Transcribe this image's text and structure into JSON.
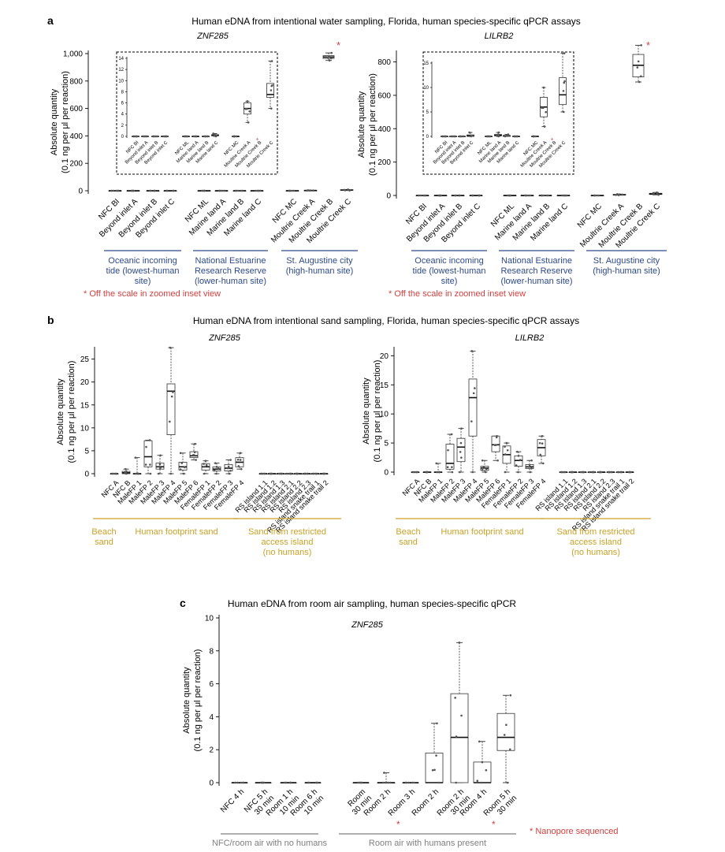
{
  "colors": {
    "axis": "#000000",
    "red": "#d23f3f",
    "blue": "#2e4a8a",
    "gold": "#c9a227",
    "gray": "#7f7f7f",
    "pt": "#555555"
  },
  "panel_a": {
    "letter": "a",
    "title": "Human eDNA from intentional water sampling, Florida, human species-specific qPCR assays",
    "footnote": "* Off the scale in zoomed inset view",
    "star": "*"
  },
  "panel_b": {
    "letter": "b",
    "title": "Human eDNA from intentional sand sampling, Florida, human species-specific qPCR assays"
  },
  "panel_c": {
    "letter": "c",
    "title": "Human eDNA from room air sampling, human species-specific qPCR",
    "footnote": "* Nanopore sequenced",
    "star": "*"
  },
  "ylabel_line1": "Absolute quantity",
  "ylabel_line2": "(0.1 ng per μl per reaction)",
  "chart_data": [
    {
      "id": "a_znf",
      "type": "box",
      "title": "ZNF285",
      "ylabel": "Absolute quantity (0.1 ng per μl per reaction)",
      "ylim": [
        0,
        1000
      ],
      "yticks": [
        "0",
        "200",
        "400",
        "600",
        "800",
        "1,000"
      ],
      "ytick_values": [
        0,
        200,
        400,
        600,
        800,
        1000
      ],
      "categories": [
        "NFC BI",
        "Beyond inlet A",
        "Beyond inlet B",
        "Beyond inlet C",
        "NFC ML",
        "Marine land A",
        "Marine land B",
        "Marine land C",
        "NFC MC",
        "Moultrie Creek A",
        "Moultrie Creek B",
        "Moultrie Creek C"
      ],
      "boxes": [
        [
          0,
          0,
          0,
          0,
          0
        ],
        [
          0,
          0,
          0,
          0,
          0
        ],
        [
          0,
          0,
          0,
          0,
          0
        ],
        [
          0,
          0,
          0,
          0,
          0
        ],
        [
          0,
          0,
          0,
          0,
          0
        ],
        [
          0,
          0,
          0,
          0,
          0
        ],
        [
          0,
          0,
          0,
          0,
          0
        ],
        [
          0,
          0,
          0,
          0,
          0
        ],
        [
          0,
          0,
          0,
          0,
          0
        ],
        [
          1,
          1,
          2,
          2,
          3
        ],
        [
          950,
          965,
          975,
          985,
          1005
        ],
        [
          2,
          3,
          5,
          7,
          9
        ]
      ],
      "starred": [
        "Moultrie Creek B"
      ],
      "groups": [
        {
          "label": [
            "Oceanic incoming",
            "tide (lowest-human",
            "site)"
          ],
          "from": 0,
          "to": 3
        },
        {
          "label": [
            "National Estuarine",
            "Research Reserve",
            "(lower-human site)"
          ],
          "from": 4,
          "to": 7
        },
        {
          "label": [
            "St. Augustine city",
            "(high-human site)"
          ],
          "from": 8,
          "to": 11
        }
      ],
      "inset": {
        "ylim": [
          0,
          14
        ],
        "yticks": [
          "0",
          "2",
          "4",
          "6",
          "8",
          "10",
          "12",
          "14"
        ],
        "ytick_values": [
          0,
          2,
          4,
          6,
          8,
          10,
          12,
          14
        ],
        "categories": [
          "NFC BI",
          "Beyond inlet A",
          "Beyond inlet B",
          "Beyond inlet C",
          "NFC ML",
          "Marine land A",
          "Marine land B",
          "Marine land C",
          "NFC MC",
          "Moultrie Creek A",
          "Moultrie Creek B",
          "Moultrie Creek C"
        ],
        "boxes": [
          [
            0,
            0,
            0,
            0,
            0
          ],
          [
            0,
            0,
            0,
            0,
            0
          ],
          [
            0,
            0,
            0,
            0,
            0
          ],
          [
            0,
            0,
            0,
            0,
            0
          ],
          [
            0,
            0,
            0,
            0,
            0
          ],
          [
            0,
            0,
            0,
            0,
            0
          ],
          [
            0,
            0,
            0,
            0,
            0
          ],
          [
            0,
            0.1,
            0.2,
            0.3,
            0.5
          ],
          [
            0,
            0,
            0,
            0,
            0
          ],
          [
            2.5,
            4,
            5,
            6,
            6.3
          ],
          null,
          [
            5,
            7,
            7.5,
            9.5,
            13.5
          ]
        ]
      }
    },
    {
      "id": "a_lil",
      "type": "box",
      "title": "LILRB2",
      "ylabel": "Absolute quantity (0.1 ng per μl per reaction)",
      "ylim": [
        0,
        850
      ],
      "yticks": [
        "0",
        "200",
        "400",
        "600",
        "800"
      ],
      "ytick_values": [
        0,
        200,
        400,
        600,
        800
      ],
      "categories": [
        "NFC BI",
        "Beyond inlet A",
        "Beyond inlet B",
        "Beyond inlet C",
        "NFC ML",
        "Marine land A",
        "Marine land B",
        "Marine land C",
        "NFC MC",
        "Moultrie Creek A",
        "Moultrie Creek B",
        "Moultrie Creek C"
      ],
      "boxes": [
        [
          0,
          0,
          0,
          0,
          0
        ],
        [
          0,
          0,
          0,
          0,
          0
        ],
        [
          0,
          0,
          0,
          0,
          0
        ],
        [
          0,
          0,
          0,
          0,
          0
        ],
        [
          0,
          0,
          0,
          0,
          0
        ],
        [
          0,
          0,
          0,
          0,
          0
        ],
        [
          0,
          0,
          0,
          0,
          0
        ],
        [
          0,
          0,
          0,
          0,
          0
        ],
        [
          0,
          0,
          0,
          0,
          0
        ],
        [
          2,
          3,
          4,
          6,
          8
        ],
        [
          680,
          710,
          780,
          845,
          900
        ],
        [
          4,
          6,
          9,
          13,
          18
        ]
      ],
      "starred": [
        "Moultrie Creek B"
      ],
      "groups": [
        {
          "label": [
            "Oceanic incoming",
            "tide (lowest-human",
            "site)"
          ],
          "from": 0,
          "to": 3
        },
        {
          "label": [
            "National Estuarine",
            "Research Reserve",
            "(lower-human site)"
          ],
          "from": 4,
          "to": 7
        },
        {
          "label": [
            "St. Augustine city",
            "(high-human site)"
          ],
          "from": 8,
          "to": 11
        }
      ],
      "inset": {
        "ylim": [
          0,
          15
        ],
        "yticks": [
          "0",
          "5",
          "10",
          "15"
        ],
        "ytick_values": [
          0,
          5,
          10,
          15
        ],
        "categories": [
          "NFC BI",
          "Beyond inlet A",
          "Beyond inlet B",
          "Beyond inlet C",
          "NFC ML",
          "Marine land A",
          "Marine land B",
          "Marine land C",
          "NFC MC",
          "Moultrie Creek A",
          "Moultrie Creek B",
          "Moultrie Creek C"
        ],
        "boxes": [
          [
            0,
            0,
            0,
            0,
            0
          ],
          [
            0,
            0,
            0,
            0,
            0
          ],
          [
            0,
            0,
            0,
            0,
            0
          ],
          [
            0,
            0,
            0.1,
            0.3,
            0.8
          ],
          [
            0,
            0,
            0,
            0,
            0
          ],
          [
            0,
            0.1,
            0.2,
            0.4,
            0.8
          ],
          [
            0,
            0,
            0.1,
            0.2,
            0.4
          ],
          [
            0,
            0,
            0,
            0,
            0
          ],
          [
            0,
            0,
            0,
            0,
            0
          ],
          [
            2,
            4,
            6,
            8,
            10
          ],
          null,
          [
            5,
            6.5,
            8.5,
            12,
            17
          ]
        ]
      }
    },
    {
      "id": "b_znf",
      "type": "box",
      "title": "ZNF285",
      "ylabel": "Absolute quantity (0.1 ng per μl per reaction)",
      "ylim": [
        0,
        27
      ],
      "yticks": [
        "0",
        "5",
        "10",
        "15",
        "20",
        "25"
      ],
      "ytick_values": [
        0,
        5,
        10,
        15,
        20,
        25
      ],
      "categories": [
        "NFC A",
        "NFC B",
        "MaleFP 1",
        "MaleFP 2",
        "MaleFP 3",
        "MaleFP 4",
        "MaleFP 5",
        "MaleFP 6",
        "FemaleFP 1",
        "FemaleFP 2",
        "FemaleFP 3",
        "FemaleFP 4",
        "RS island 1.1",
        "RS island 1.2",
        "RS island 1.3",
        "RS island 2.1",
        "RS island 2.2",
        "RS island 2.3",
        "RS island snake trail 1",
        "RS island snake trail 2"
      ],
      "boxes": [
        [
          0,
          0,
          0,
          0,
          0
        ],
        [
          0,
          0,
          0.2,
          0.5,
          1
        ],
        [
          0,
          0,
          0,
          0,
          3.5
        ],
        [
          0,
          1.5,
          3.7,
          7.2,
          7.3
        ],
        [
          0,
          1,
          1.5,
          2.3,
          4
        ],
        [
          0,
          8.5,
          18,
          19.6,
          27.5
        ],
        [
          0,
          0.8,
          1.5,
          2.5,
          4.5
        ],
        [
          3,
          3.5,
          3.9,
          4.8,
          6.5
        ],
        [
          0,
          0.8,
          1.5,
          2.2,
          2.8
        ],
        [
          0,
          0.6,
          1,
          1.5,
          2.3
        ],
        [
          0,
          0.6,
          1.2,
          2,
          3
        ],
        [
          1,
          1.5,
          2.5,
          3.5,
          4.5
        ],
        [
          0,
          0,
          0,
          0,
          0
        ],
        [
          0,
          0,
          0,
          0,
          0
        ],
        [
          0,
          0,
          0,
          0,
          0
        ],
        [
          0,
          0,
          0,
          0,
          0
        ],
        [
          0,
          0,
          0,
          0,
          0
        ],
        [
          0,
          0,
          0,
          0,
          0
        ],
        [
          0,
          0,
          0,
          0,
          0
        ],
        [
          0,
          0,
          0,
          0,
          0
        ]
      ],
      "starred": [],
      "groups": [
        {
          "label": [
            "Beach",
            "sand"
          ],
          "from": 0,
          "to": 1
        },
        {
          "label": [
            "Human footprint sand"
          ],
          "from": 2,
          "to": 11
        },
        {
          "label": [
            "Sand from restricted",
            "access island",
            "(no humans)"
          ],
          "from": 12,
          "to": 19
        }
      ]
    },
    {
      "id": "b_lil",
      "type": "box",
      "title": "LILRB2",
      "ylabel": "Absolute quantity (0.1 ng per μl per reaction)",
      "ylim": [
        0,
        21
      ],
      "yticks": [
        "0",
        "5",
        "10",
        "15",
        "20"
      ],
      "ytick_values": [
        0,
        5,
        10,
        15,
        20
      ],
      "categories": [
        "NFC A",
        "NFC B",
        "MaleFP 1",
        "MaleFP 2",
        "MaleFP 3",
        "MaleFP 4",
        "MaleFP 5",
        "MaleFP 6",
        "FemaleFP 1",
        "FemaleFP 2",
        "FemaleFP 3",
        "FemaleFP 4",
        "RS island 1.1",
        "RS island 1.2",
        "RS island 1.3",
        "RS island 2.1",
        "RS island 2.2",
        "RS island 2.3",
        "RS island snake trail 1",
        "RS island snake trail 2"
      ],
      "boxes": [
        [
          0,
          0,
          0,
          0,
          0
        ],
        [
          0,
          0,
          0,
          0,
          0
        ],
        [
          0,
          0,
          0,
          0,
          1.5
        ],
        [
          0,
          0.5,
          1.5,
          4.8,
          6.5
        ],
        [
          0,
          1.8,
          4.3,
          5.8,
          7.5
        ],
        [
          0,
          6.2,
          12.8,
          16,
          20.8
        ],
        [
          0,
          0.3,
          0.7,
          1,
          2
        ],
        [
          2,
          3.5,
          4.7,
          6.2,
          6.2
        ],
        [
          0,
          1.5,
          3,
          4.5,
          5
        ],
        [
          0,
          1,
          2,
          2.8,
          3.5
        ],
        [
          0,
          0.6,
          0.9,
          1.3,
          2
        ],
        [
          1.5,
          2.8,
          4.2,
          5.6,
          6.2
        ],
        [
          0,
          0,
          0,
          0,
          0
        ],
        [
          0,
          0,
          0,
          0,
          0
        ],
        [
          0,
          0,
          0,
          0,
          0
        ],
        [
          0,
          0,
          0,
          0,
          0
        ],
        [
          0,
          0,
          0,
          0,
          0
        ],
        [
          0,
          0,
          0,
          0,
          0
        ],
        [
          0,
          0,
          0,
          0,
          0
        ],
        [
          0,
          0,
          0,
          0,
          0
        ]
      ],
      "starred": [],
      "groups": [
        {
          "label": [
            "Beach",
            "sand"
          ],
          "from": 0,
          "to": 1
        },
        {
          "label": [
            "Human footprint sand"
          ],
          "from": 2,
          "to": 11
        },
        {
          "label": [
            "Sand from restricted",
            "access island",
            "(no humans)"
          ],
          "from": 12,
          "to": 19
        }
      ]
    },
    {
      "id": "c_znf",
      "type": "box",
      "title": "ZNF285",
      "ylabel": "Absolute quantity (0.1 ng per μl per reaction)",
      "ylim": [
        0,
        10
      ],
      "yticks": [
        "0",
        "2",
        "4",
        "6",
        "8",
        "10"
      ],
      "ytick_values": [
        0,
        2,
        4,
        6,
        8,
        10
      ],
      "categories": [
        "NFC 4 h",
        "NFC 5 h 30 min",
        "Room 1 h 10 min",
        "Room 6 h 10 min",
        "Room 30 min",
        "Room 2 h",
        "Room 3 h",
        "Room 2 h",
        "Room 2 h 30 min",
        "Room 4 h",
        "Room 5 h 30 min"
      ],
      "boxes": [
        [
          0,
          0,
          0,
          0,
          0
        ],
        [
          0,
          0,
          0,
          0,
          0
        ],
        [
          0,
          0,
          0,
          0,
          0
        ],
        [
          0,
          0,
          0,
          0,
          0
        ],
        [
          0,
          0,
          0,
          0,
          0
        ],
        [
          0,
          0,
          0,
          0,
          0.6
        ],
        [
          0,
          0,
          0,
          0,
          0
        ],
        [
          0,
          0,
          0,
          1.8,
          3.6
        ],
        [
          0,
          0,
          2.75,
          5.4,
          8.5
        ],
        [
          0,
          0,
          0,
          1.25,
          2.5
        ],
        [
          0,
          1.95,
          2.75,
          4.2,
          5.3
        ]
      ],
      "starred": [
        "Room 3 h",
        "Room 5 h 30 min"
      ],
      "groups": [
        {
          "label": [
            "NFC/room air with no humans"
          ],
          "from": 0,
          "to": 3
        },
        {
          "label": [
            "Room air with humans present"
          ],
          "from": 4,
          "to": 10
        }
      ]
    }
  ]
}
